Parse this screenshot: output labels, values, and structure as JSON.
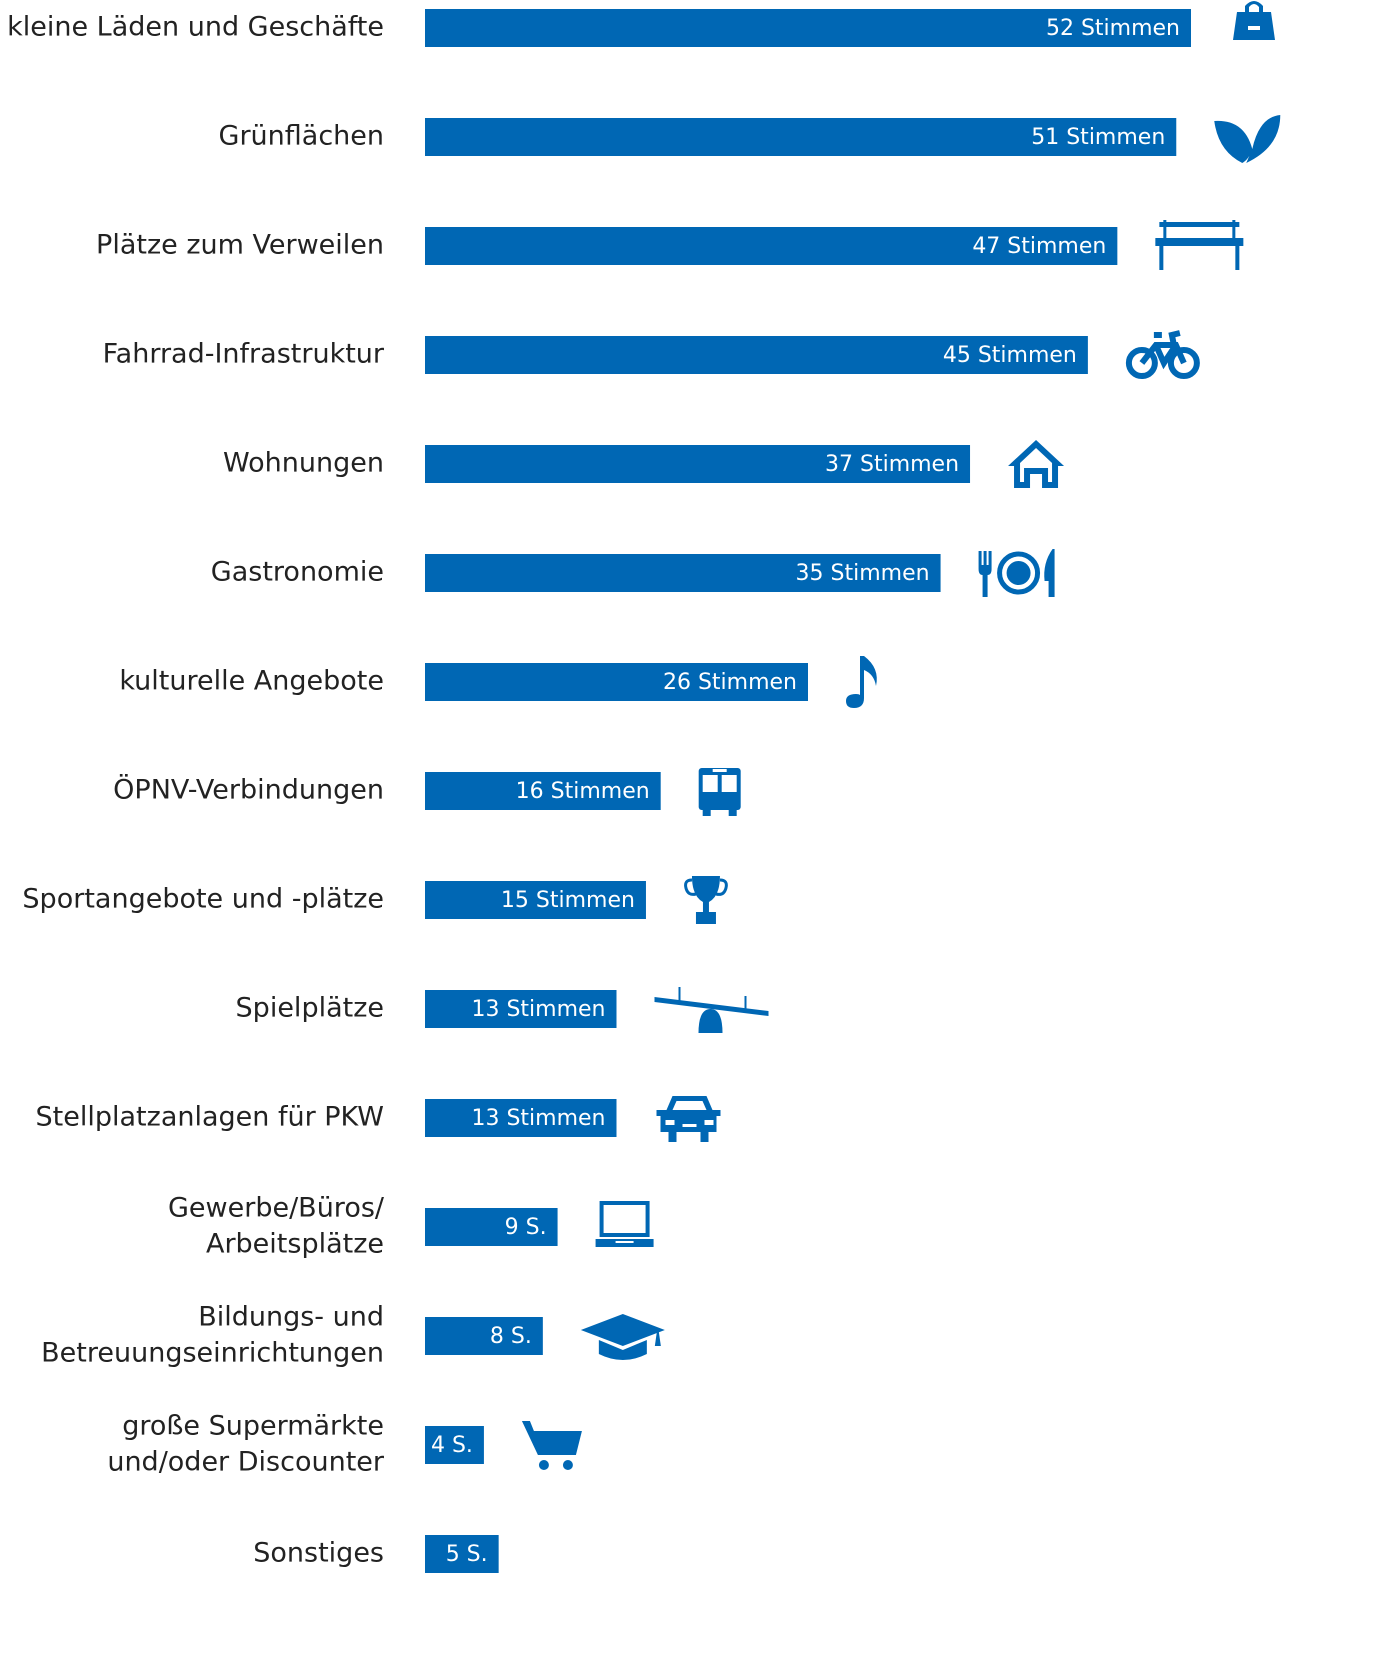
{
  "chart_data": {
    "type": "bar",
    "orientation": "horizontal",
    "color": "#0067b4",
    "categories": [
      [
        "kleine Läden und Geschäfte"
      ],
      [
        "Grünflächen"
      ],
      [
        "Plätze zum Verweilen"
      ],
      [
        "Fahrrad-Infrastruktur"
      ],
      [
        "Wohnungen"
      ],
      [
        "Gastronomie"
      ],
      [
        "kulturelle Angebote"
      ],
      [
        "ÖPNV-Verbindungen"
      ],
      [
        "Sportangebote und -plätze"
      ],
      [
        "Spielplätze"
      ],
      [
        "Stellplatzanlagen für PKW"
      ],
      [
        "Gewerbe/Büros/",
        "Arbeitsplätze"
      ],
      [
        "Bildungs- und",
        "Betreuungseinrichtungen"
      ],
      [
        "große Supermärkte",
        "und/oder Discounter"
      ],
      [
        "Sonstiges"
      ]
    ],
    "values": [
      52,
      51,
      47,
      45,
      37,
      35,
      26,
      16,
      15,
      13,
      13,
      9,
      8,
      4,
      5
    ],
    "value_labels": [
      "52 Stimmen",
      "51 Stimmen",
      "47 Stimmen",
      "45 Stimmen",
      "37 Stimmen",
      "35 Stimmen",
      "26 Stimmen",
      "16 Stimmen",
      "15 Stimmen",
      "13 Stimmen",
      "13 Stimmen",
      "9 S.",
      "8 S.",
      "4 S.",
      "5 S."
    ]
  }
}
